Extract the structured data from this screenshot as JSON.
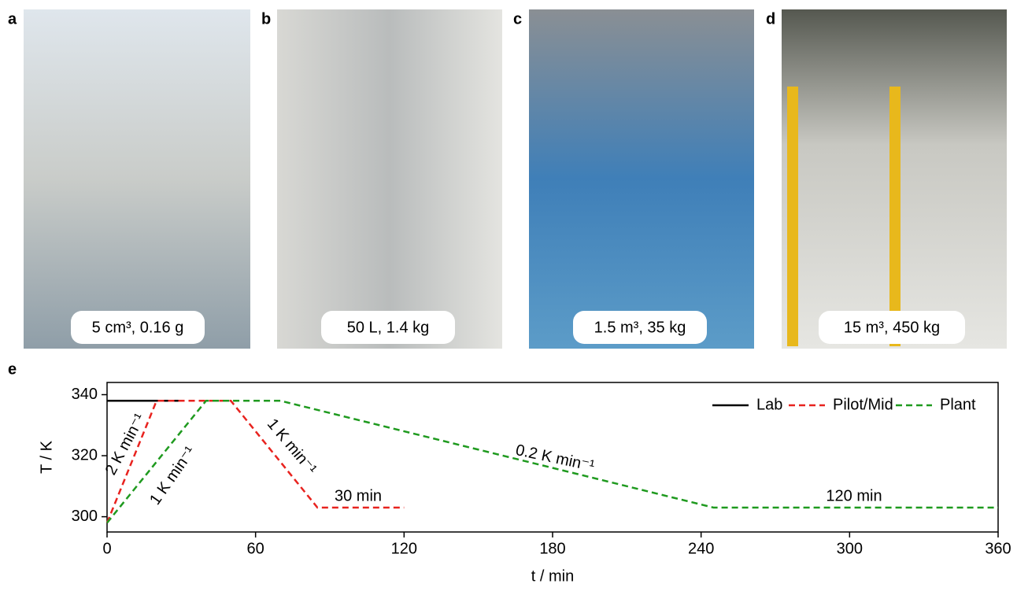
{
  "panels": [
    {
      "letter": "a",
      "label": "5 cm³, 0.16 g"
    },
    {
      "letter": "b",
      "label": "50 L, 1.4 kg"
    },
    {
      "letter": "c",
      "label": "1.5 m³, 35 kg"
    },
    {
      "letter": "d",
      "label": "15 m³, 450 kg"
    }
  ],
  "chart_data": {
    "type": "line",
    "letter": "e",
    "x_label": "t / min",
    "y_label": "T / K",
    "xlim": [
      0,
      360
    ],
    "xticks": [
      0,
      60,
      120,
      180,
      240,
      300,
      360
    ],
    "ylim": [
      295,
      344
    ],
    "yticks": [
      300,
      320,
      340
    ],
    "legend": "upper right",
    "series": [
      {
        "name": "Lab",
        "color": "#000000",
        "dash": false,
        "x": [
          0,
          30
        ],
        "values": [
          338,
          338
        ]
      },
      {
        "name": "Pilot/Mid",
        "color": "#e8231f",
        "dash": true,
        "x": [
          0,
          20,
          50,
          85,
          120
        ],
        "values": [
          298,
          338,
          338,
          303,
          303
        ]
      },
      {
        "name": "Plant",
        "color": "#1f9a1f",
        "dash": true,
        "x": [
          0,
          40,
          70,
          245,
          360
        ],
        "values": [
          298,
          338,
          338,
          303,
          303
        ]
      }
    ],
    "annotations": [
      "2 K min⁻¹",
      "1 K min⁻¹",
      "1 K min⁻¹",
      "0.2 K min⁻¹",
      "30 min",
      "120 min"
    ]
  }
}
